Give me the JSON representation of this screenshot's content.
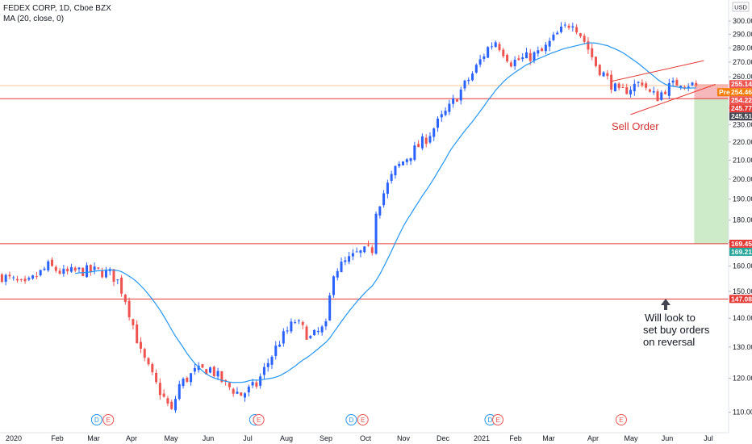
{
  "legend": {
    "symbol": "FEDEX CORP, 1D, Cboe BZX",
    "indicator": "MA (20, close, 0)"
  },
  "currency": "USD",
  "colors": {
    "up": "#2962ff",
    "down": "#ef5350",
    "ma": "#2196f3",
    "hline": "#e53935",
    "orange": "#f57c00",
    "stop_zone": "#f7b8bc",
    "target_zone": "#cdebc9"
  },
  "chart_data": {
    "type": "candlestick",
    "x_axis": [
      "2020",
      "Feb",
      "Mar",
      "Apr",
      "May",
      "Jun",
      "Jul",
      "Aug",
      "Sep",
      "Oct",
      "Nov",
      "Dec",
      "2021",
      "Feb",
      "Mar",
      "Apr",
      "May",
      "Jun",
      "Jul"
    ],
    "y_ticks": [
      "300.00",
      "290.00",
      "280.00",
      "270.00",
      "260.00",
      "250.00",
      "240.00",
      "230.00",
      "220.00",
      "210.00",
      "200.00",
      "190.00",
      "180.00",
      "170.00",
      "160.00",
      "150.00",
      "140.00",
      "130.00",
      "120.00",
      "110.00"
    ],
    "y_scale": "log",
    "ylim": [
      107,
      305
    ],
    "price_path": [
      [
        0,
        156
      ],
      [
        6,
        152
      ],
      [
        12,
        160
      ],
      [
        16,
        157
      ],
      [
        20,
        158
      ],
      [
        24,
        158
      ],
      [
        28,
        157
      ],
      [
        30,
        154
      ],
      [
        32,
        147
      ],
      [
        36,
        128
      ],
      [
        40,
        118
      ],
      [
        44,
        110
      ],
      [
        46,
        118
      ],
      [
        50,
        122
      ],
      [
        54,
        123
      ],
      [
        58,
        118
      ],
      [
        62,
        115
      ],
      [
        66,
        118
      ],
      [
        72,
        132
      ],
      [
        76,
        139
      ],
      [
        80,
        133
      ],
      [
        84,
        137
      ],
      [
        86,
        158
      ],
      [
        92,
        165
      ],
      [
        96,
        167
      ],
      [
        97,
        185
      ],
      [
        102,
        205
      ],
      [
        110,
        222
      ],
      [
        116,
        240
      ],
      [
        122,
        262
      ],
      [
        126,
        280
      ],
      [
        128,
        285
      ],
      [
        132,
        270
      ],
      [
        136,
        273
      ],
      [
        140,
        277
      ],
      [
        144,
        290
      ],
      [
        148,
        300
      ],
      [
        151,
        285
      ],
      [
        154,
        268
      ],
      [
        160,
        249
      ],
      [
        166,
        257
      ],
      [
        168,
        249
      ],
      [
        170,
        247
      ],
      [
        172,
        252
      ],
      [
        176,
        257
      ],
      [
        180,
        254
      ]
    ],
    "moving_average": {
      "name": "MA (20, close, 0)",
      "period": 20
    },
    "horizontal_levels": [
      {
        "value": 169.45,
        "label": "169.45",
        "style": "solid red"
      },
      {
        "value": 147.08,
        "label": "147.08",
        "style": "solid red"
      },
      {
        "value": 245.77,
        "label": "245.77",
        "style": "solid red"
      },
      {
        "value": 254.22,
        "label": "254.22",
        "style": "orange"
      }
    ],
    "price_labels": [
      {
        "value": 255.14,
        "label": "255.14",
        "color": "#ef5350"
      },
      {
        "value": 254.46,
        "label": "254.46",
        "color": "#f57c00",
        "tag": "Pre"
      },
      {
        "value": 254.22,
        "label": "254.22",
        "color": "#ef5350"
      },
      {
        "value": 245.77,
        "label": "245.77",
        "color": "#e53935"
      },
      {
        "value": 245.51,
        "label": "245.51",
        "color": "#434651"
      },
      {
        "value": 169.45,
        "label": "169.45",
        "color": "#e53935"
      },
      {
        "value": 169.21,
        "label": "169.21",
        "color": "#26a69a"
      },
      {
        "value": 147.08,
        "label": "147.08",
        "color": "#e53935"
      }
    ],
    "wedge": {
      "upper_from": [
        158,
        257
      ],
      "upper_to": [
        182,
        271
      ],
      "lower_from": [
        163,
        236
      ],
      "lower_to": [
        185,
        255
      ]
    },
    "position": {
      "entry": 245.77,
      "stop": 255.14,
      "target": 169.45,
      "bar_from": 180,
      "bar_to": 196
    },
    "events": [
      {
        "bar": 25,
        "letter": "D",
        "kind": "dividend"
      },
      {
        "bar": 28,
        "letter": "E",
        "kind": "earnings"
      },
      {
        "bar": 66,
        "letter": "D",
        "kind": "dividend"
      },
      {
        "bar": 67,
        "letter": "E",
        "kind": "earnings"
      },
      {
        "bar": 91,
        "letter": "D",
        "kind": "dividend"
      },
      {
        "bar": 94,
        "letter": "E",
        "kind": "earnings"
      },
      {
        "bar": 127,
        "letter": "D",
        "kind": "dividend"
      },
      {
        "bar": 129,
        "letter": "E",
        "kind": "earnings"
      },
      {
        "bar": 161,
        "letter": "E",
        "kind": "earnings"
      }
    ]
  },
  "annotations": {
    "sell_order": "Sell Order",
    "buy_note": [
      "Will look to",
      "set buy orders",
      "on reversal"
    ]
  }
}
